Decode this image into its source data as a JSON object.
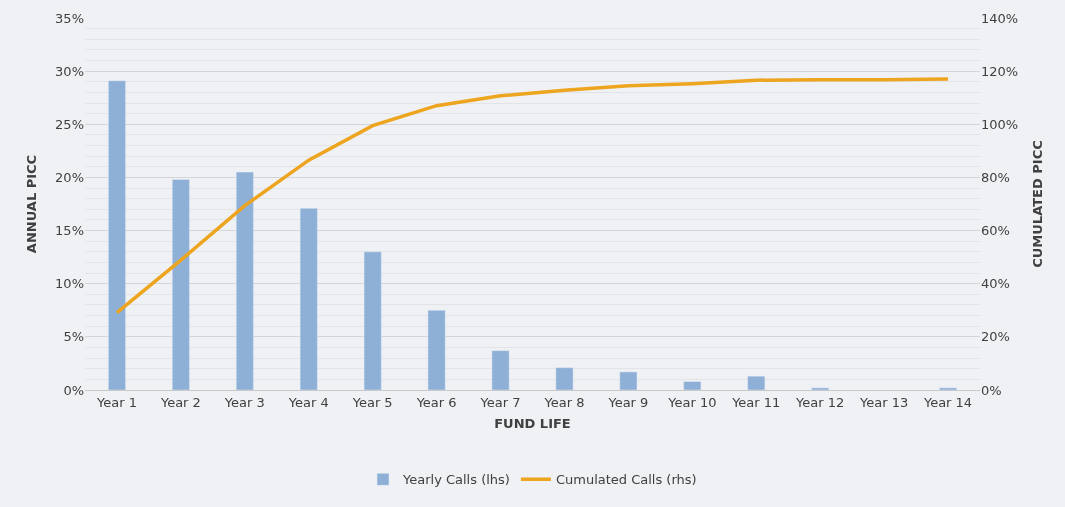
{
  "chart_data": {
    "type": "bar",
    "xlabel": "FUND LIFE",
    "ylabel": "ANNUAL PICC",
    "y2label": "CUMULATED PICC",
    "categories": [
      "Year 1",
      "Year 2",
      "Year 3",
      "Year 4",
      "Year 5",
      "Year 6",
      "Year 7",
      "Year 8",
      "Year 9",
      "Year 10",
      "Year 11",
      "Year 12",
      "Year 13",
      "Year 14"
    ],
    "series": [
      {
        "name": "Yearly Calls (lhs)",
        "color": "#8eafd6",
        "values": [
          29.1,
          19.8,
          20.5,
          17.1,
          13.0,
          7.5,
          3.7,
          2.1,
          1.7,
          0.8,
          1.3,
          0.2,
          null,
          0.2
        ]
      },
      {
        "name": "Cumulated Calls (rhs)",
        "type": "line",
        "axis": "y2",
        "color": "#eda41e",
        "values": [
          29.1,
          48.9,
          69.4,
          86.5,
          99.5,
          107.0,
          110.7,
          112.8,
          114.5,
          115.3,
          116.6,
          116.8,
          116.8,
          117.0
        ]
      }
    ],
    "ylim": [
      0,
      35
    ],
    "yticks": [
      {
        "value": 0,
        "label": "0%"
      },
      {
        "value": 5,
        "label": "5%"
      },
      {
        "value": 10,
        "label": "10%"
      },
      {
        "value": 15,
        "label": "15%"
      },
      {
        "value": 20,
        "label": "20%"
      },
      {
        "value": 25,
        "label": "25%"
      },
      {
        "value": 30,
        "label": "30%"
      },
      {
        "value": 35,
        "label": "35%"
      }
    ],
    "y2lim": [
      0,
      140
    ],
    "y2ticks": [
      {
        "value": 0,
        "label": "0%"
      },
      {
        "value": 20,
        "label": "20%"
      },
      {
        "value": 40,
        "label": "40%"
      },
      {
        "value": 60,
        "label": "60%"
      },
      {
        "value": 80,
        "label": "80%"
      },
      {
        "value": 100,
        "label": "100%"
      },
      {
        "value": 120,
        "label": "120%"
      },
      {
        "value": 140,
        "label": "140%"
      }
    ],
    "grid": "y",
    "legend": "bottom",
    "marker": "none",
    "line_style": "solid"
  }
}
